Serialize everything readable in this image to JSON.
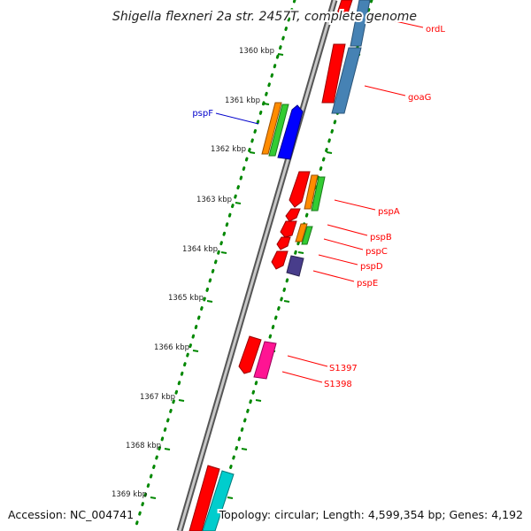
{
  "title": "Shigella flexneri 2a str. 2457T, complete genome",
  "footer": {
    "accession": "Accession: NC_004741",
    "topology": "Topology: circular; Length: 4,599,354 bp; Genes: 4,192"
  },
  "colors": {
    "backbone_outer": "#555555",
    "backbone_inner": "#c8c8c8",
    "ruler_dots": "#008800",
    "label_red": "#ff0000",
    "label_blue": "#0000cc"
  },
  "ticks": [
    {
      "label": "1360 kbp"
    },
    {
      "label": "1361 kbp"
    },
    {
      "label": "1362 kbp"
    },
    {
      "label": "1363 kbp"
    },
    {
      "label": "1364 kbp"
    },
    {
      "label": "1365 kbp"
    },
    {
      "label": "1366 kbp"
    },
    {
      "label": "1367 kbp"
    },
    {
      "label": "1368 kbp"
    },
    {
      "label": "1369 kbp"
    }
  ],
  "gene_labels": [
    {
      "text": "ordL",
      "color": "red"
    },
    {
      "text": "goaG",
      "color": "red"
    },
    {
      "text": "pspF",
      "color": "blue"
    },
    {
      "text": "pspA",
      "color": "red"
    },
    {
      "text": "pspB",
      "color": "red"
    },
    {
      "text": "pspC",
      "color": "red"
    },
    {
      "text": "pspD",
      "color": "red"
    },
    {
      "text": "pspE",
      "color": "red"
    },
    {
      "text": "S1397",
      "color": "red"
    },
    {
      "text": "S1398",
      "color": "red"
    }
  ]
}
